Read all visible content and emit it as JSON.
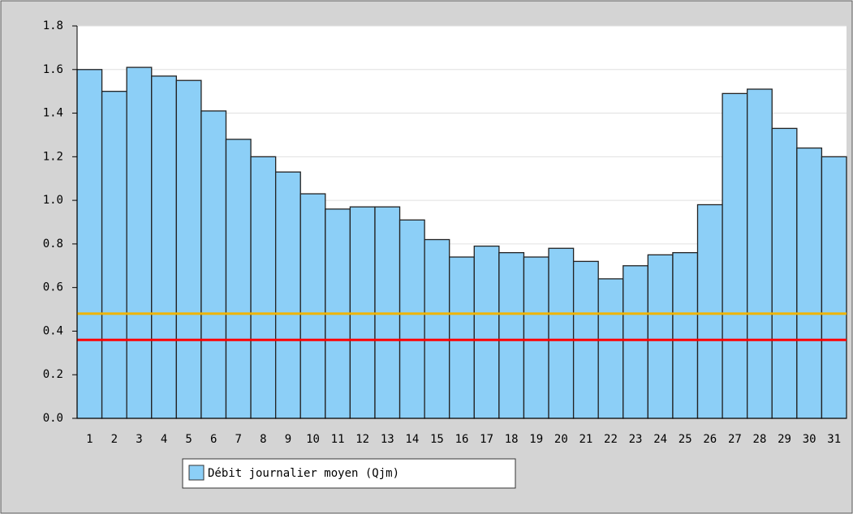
{
  "chart_data": {
    "type": "bar",
    "categories": [
      "1",
      "2",
      "3",
      "4",
      "5",
      "6",
      "7",
      "8",
      "9",
      "10",
      "11",
      "12",
      "13",
      "14",
      "15",
      "16",
      "17",
      "18",
      "19",
      "20",
      "21",
      "22",
      "23",
      "24",
      "25",
      "26",
      "27",
      "28",
      "29",
      "30",
      "31"
    ],
    "series": [
      {
        "name": "Débit journalier moyen (Qjm)",
        "color": "#8ccff7",
        "values": [
          1.6,
          1.5,
          1.61,
          1.57,
          1.55,
          1.41,
          1.28,
          1.2,
          1.13,
          1.03,
          0.96,
          0.97,
          0.97,
          0.91,
          0.82,
          0.74,
          0.79,
          0.76,
          0.74,
          0.78,
          0.72,
          0.64,
          0.7,
          0.75,
          0.76,
          0.98,
          1.49,
          1.51,
          1.33,
          1.24,
          1.2
        ]
      }
    ],
    "reference_lines": [
      {
        "value": 0.48,
        "color": "#f0b400"
      },
      {
        "value": 0.36,
        "color": "#ff0000"
      }
    ],
    "ylim": [
      0,
      1.8
    ],
    "yticks": [
      {
        "value": 0,
        "label": "0.0"
      },
      0.2,
      0.4,
      0.6,
      0.8,
      {
        "value": 1,
        "label": "1.0"
      },
      1.2,
      1.4,
      1.6,
      1.8
    ],
    "grid": true
  }
}
